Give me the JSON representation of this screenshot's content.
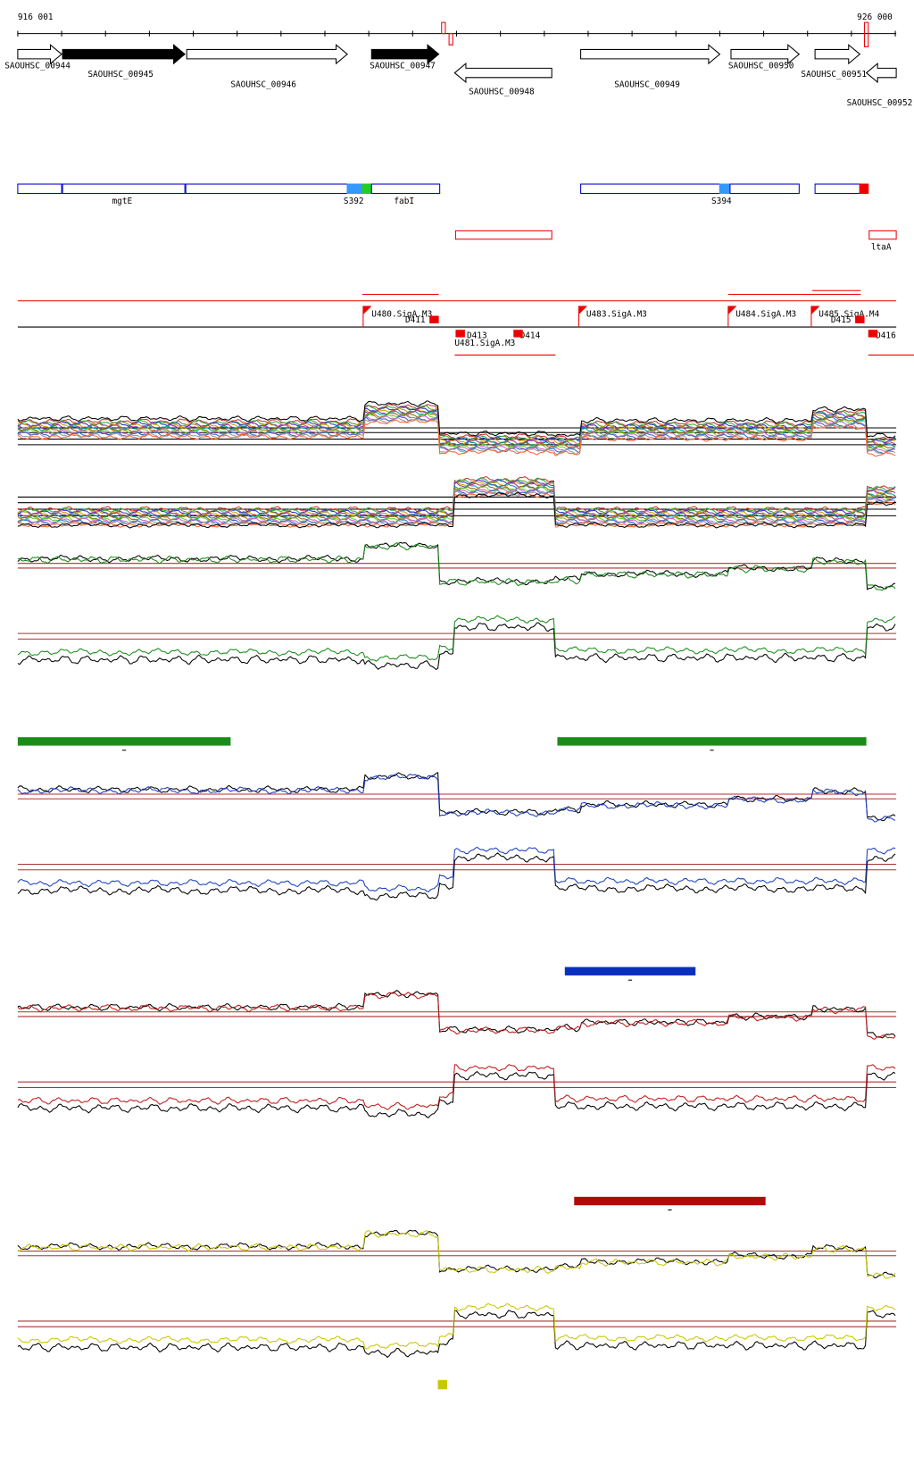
{
  "ruler": {
    "start": "916 001",
    "end": "926 000"
  },
  "genes": [
    "SAOUHSC_00944",
    "SAOUHSC_00945",
    "SAOUHSC_00946",
    "SAOUHSC_00947",
    "SAOUHSC_00948",
    "SAOUHSC_00949",
    "SAOUHSC_00950",
    "SAOUHSC_00951",
    "SAOUHSC_00952"
  ],
  "features": [
    "mgtE",
    "S392",
    "fabI",
    "S394",
    "ltaA"
  ],
  "regulatory": [
    "U480.SigA.M3",
    "D411",
    "U481.SigA.M3",
    "D413",
    "D414",
    "U483.SigA.M3",
    "U484.SigA.M3",
    "U485.SigA.M4",
    "D415",
    "D416"
  ]
}
